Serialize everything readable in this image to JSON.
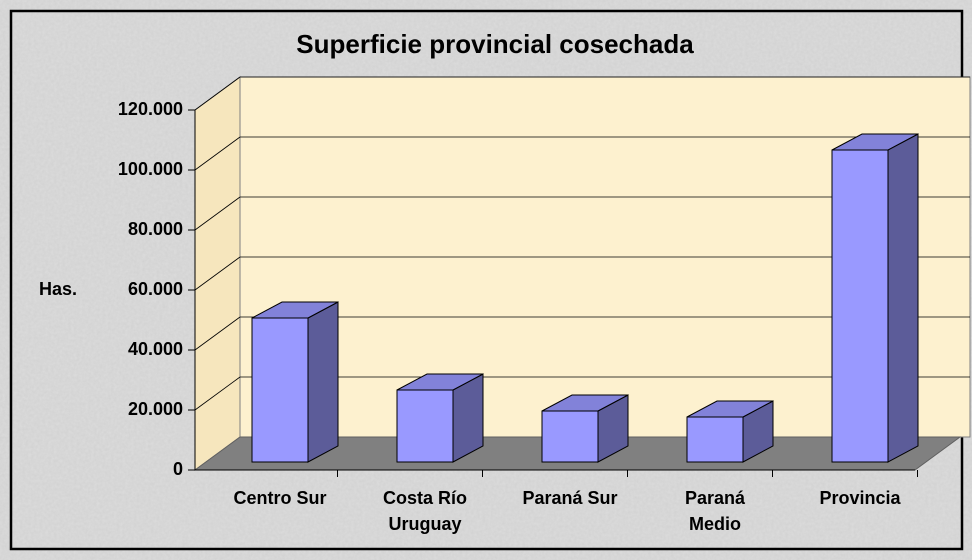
{
  "chart_data": {
    "type": "bar3d",
    "title": "Superficie provincial cosechada",
    "y_label": "Has.",
    "categories": [
      "Centro Sur",
      "Costa Río Uruguay",
      "Paraná Sur",
      "Paraná Medio",
      "Provincia"
    ],
    "values": [
      48000,
      24000,
      17000,
      15000,
      104000
    ],
    "color": "#9999ff",
    "ylim": [
      0,
      120000
    ],
    "yticks": [
      0,
      {
        "value": 20000,
        "label": "20.000"
      },
      {
        "value": 40000,
        "label": "40.000"
      },
      {
        "value": 60000,
        "label": "60.000"
      },
      {
        "value": 80000,
        "label": "80.000"
      },
      {
        "value": 100000,
        "label": "100.000"
      },
      {
        "value": 120000,
        "label": "120.000"
      }
    ],
    "grid": true
  }
}
